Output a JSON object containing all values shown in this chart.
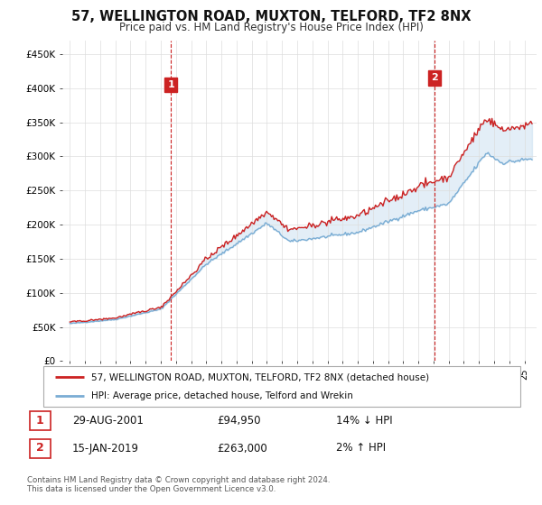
{
  "title": "57, WELLINGTON ROAD, MUXTON, TELFORD, TF2 8NX",
  "subtitle": "Price paid vs. HM Land Registry's House Price Index (HPI)",
  "yticks": [
    0,
    50000,
    100000,
    150000,
    200000,
    250000,
    300000,
    350000,
    400000,
    450000
  ],
  "ytick_labels": [
    "£0",
    "£50K",
    "£100K",
    "£150K",
    "£200K",
    "£250K",
    "£300K",
    "£350K",
    "£400K",
    "£450K"
  ],
  "xlim_start": 1994.5,
  "xlim_end": 2025.8,
  "ylim": [
    0,
    470000
  ],
  "hpi_color": "#7aadd4",
  "price_color": "#cc2222",
  "fill_color": "#c8dff0",
  "marker1_x": 2001.66,
  "marker1_y": 94950,
  "marker1_label": "1",
  "marker1_top_y": 405000,
  "marker2_x": 2019.04,
  "marker2_y": 263000,
  "marker2_label": "2",
  "marker2_top_y": 415000,
  "legend_line1": "57, WELLINGTON ROAD, MUXTON, TELFORD, TF2 8NX (detached house)",
  "legend_line2": "HPI: Average price, detached house, Telford and Wrekin",
  "table_rows": [
    {
      "num": "1",
      "date": "29-AUG-2001",
      "price": "£94,950",
      "change": "14% ↓ HPI"
    },
    {
      "num": "2",
      "date": "15-JAN-2019",
      "price": "£263,000",
      "change": "2% ↑ HPI"
    }
  ],
  "footnote": "Contains HM Land Registry data © Crown copyright and database right 2024.\nThis data is licensed under the Open Government Licence v3.0.",
  "background_color": "#ffffff",
  "grid_color": "#dddddd"
}
